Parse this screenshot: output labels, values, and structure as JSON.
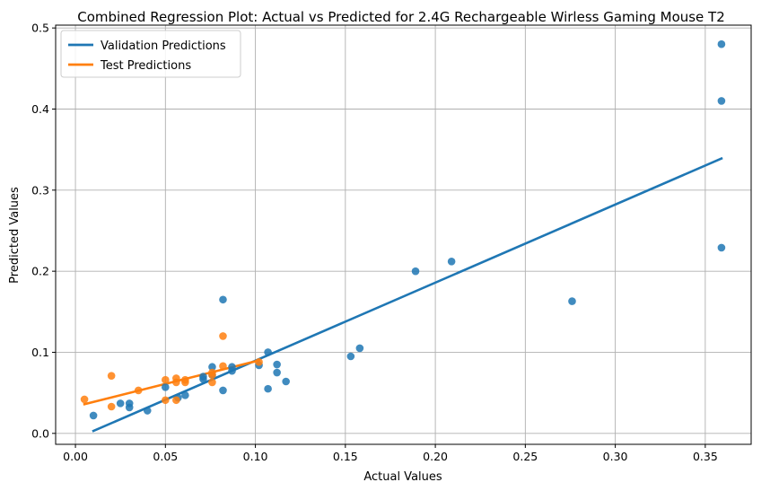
{
  "chart_data": {
    "type": "scatter",
    "title": "Combined Regression Plot: Actual vs Predicted for 2.4G Rechargeable Wirless Gaming Mouse T2",
    "xlabel": "Actual Values",
    "ylabel": "Predicted Values",
    "xlim": [
      -0.011,
      0.3755
    ],
    "ylim": [
      -0.0135,
      0.5035
    ],
    "xticks": [
      0.0,
      0.05,
      0.1,
      0.15,
      0.2,
      0.25,
      0.3,
      0.35
    ],
    "xtick_labels": [
      "0.00",
      "0.05",
      "0.10",
      "0.15",
      "0.20",
      "0.25",
      "0.30",
      "0.35"
    ],
    "yticks": [
      0.0,
      0.1,
      0.2,
      0.3,
      0.4,
      0.5
    ],
    "ytick_labels": [
      "0.0",
      "0.1",
      "0.2",
      "0.3",
      "0.4",
      "0.5"
    ],
    "grid": true,
    "legend_position": "top-left",
    "series": [
      {
        "name": "Validation Predictions",
        "color": "#1f77b4",
        "line": [
          [
            0.01,
            0.003
          ],
          [
            0.359,
            0.339
          ]
        ],
        "points": [
          [
            0.01,
            0.022
          ],
          [
            0.025,
            0.037
          ],
          [
            0.03,
            0.037
          ],
          [
            0.03,
            0.032
          ],
          [
            0.04,
            0.028
          ],
          [
            0.05,
            0.057
          ],
          [
            0.057,
            0.044
          ],
          [
            0.061,
            0.047
          ],
          [
            0.071,
            0.067
          ],
          [
            0.071,
            0.07
          ],
          [
            0.076,
            0.082
          ],
          [
            0.076,
            0.072
          ],
          [
            0.082,
            0.165
          ],
          [
            0.082,
            0.053
          ],
          [
            0.087,
            0.082
          ],
          [
            0.087,
            0.077
          ],
          [
            0.102,
            0.084
          ],
          [
            0.107,
            0.1
          ],
          [
            0.107,
            0.055
          ],
          [
            0.112,
            0.085
          ],
          [
            0.112,
            0.075
          ],
          [
            0.117,
            0.064
          ],
          [
            0.153,
            0.095
          ],
          [
            0.158,
            0.105
          ],
          [
            0.189,
            0.2
          ],
          [
            0.209,
            0.212
          ],
          [
            0.276,
            0.163
          ],
          [
            0.359,
            0.48
          ],
          [
            0.359,
            0.41
          ],
          [
            0.359,
            0.229
          ]
        ]
      },
      {
        "name": "Test Predictions",
        "color": "#ff7f0e",
        "line": [
          [
            0.005,
            0.036
          ],
          [
            0.102,
            0.09
          ]
        ],
        "points": [
          [
            0.005,
            0.042
          ],
          [
            0.02,
            0.071
          ],
          [
            0.02,
            0.033
          ],
          [
            0.035,
            0.053
          ],
          [
            0.05,
            0.066
          ],
          [
            0.05,
            0.041
          ],
          [
            0.056,
            0.068
          ],
          [
            0.056,
            0.063
          ],
          [
            0.056,
            0.041
          ],
          [
            0.061,
            0.066
          ],
          [
            0.061,
            0.063
          ],
          [
            0.076,
            0.075
          ],
          [
            0.076,
            0.072
          ],
          [
            0.076,
            0.063
          ],
          [
            0.082,
            0.12
          ],
          [
            0.082,
            0.083
          ],
          [
            0.102,
            0.088
          ]
        ]
      }
    ]
  }
}
